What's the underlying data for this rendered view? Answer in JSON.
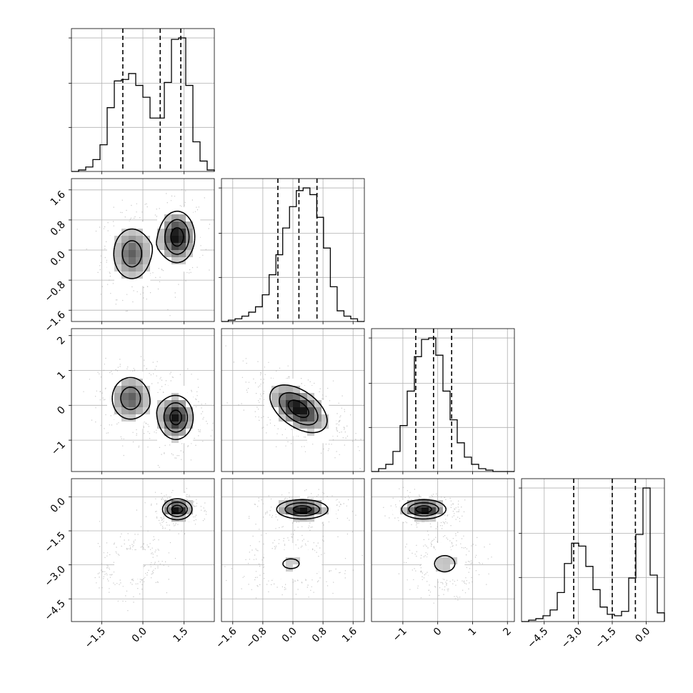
{
  "chart_data": {
    "type": "corner",
    "description_note": "",
    "parameters": [
      {
        "index": 0,
        "range": [
          -2.6,
          2.6
        ],
        "ticks": [
          -1.5,
          0.0,
          1.5
        ],
        "tick_labels": [
          "−1.5",
          "0.0",
          "1.5"
        ],
        "quantiles": [
          -0.73,
          0.63,
          1.38
        ],
        "modes": [
          {
            "mu": -0.4,
            "sd": 0.6,
            "w": 0.5
          },
          {
            "mu": 1.25,
            "sd": 0.5,
            "w": 0.5
          }
        ]
      },
      {
        "index": 1,
        "range": [
          -1.9,
          1.9
        ],
        "ticks": [
          -1.6,
          -0.8,
          0.0,
          0.8,
          1.6
        ],
        "tick_labels": [
          "−1.6",
          "−0.8",
          "0.0",
          "0.8",
          "1.6"
        ],
        "quantiles": [
          -0.4,
          0.16,
          0.64
        ],
        "modes": [
          {
            "mu": 0.2,
            "sd": 0.48,
            "w": 1.0
          }
        ]
      },
      {
        "index": 2,
        "range": [
          -1.9,
          2.2
        ],
        "ticks": [
          -1,
          0,
          1,
          2
        ],
        "tick_labels": [
          "−1",
          "0",
          "1",
          "2"
        ],
        "quantiles": [
          -0.63,
          -0.12,
          0.4
        ],
        "modes": [
          {
            "mu": -0.1,
            "sd": 0.45,
            "w": 1.0
          }
        ]
      },
      {
        "index": 3,
        "range": [
          -5.5,
          0.8
        ],
        "ticks": [
          -4.5,
          -3.0,
          -1.5,
          0.0
        ],
        "tick_labels": [
          "−4.5",
          "−3.0",
          "−1.5",
          "0.0"
        ],
        "quantiles": [
          -3.2,
          -1.5,
          -0.48
        ],
        "modes": [
          {
            "mu": -3.0,
            "sd": 0.6,
            "w": 0.45
          },
          {
            "mu": -0.55,
            "sd": 0.35,
            "w": 0.55
          }
        ]
      }
    ],
    "histograms": {
      "0": [
        0.0,
        0.01,
        0.03,
        0.08,
        0.18,
        0.43,
        0.61,
        0.62,
        0.66,
        0.58,
        0.5,
        0.36,
        0.36,
        0.6,
        0.89,
        0.9,
        0.58,
        0.2,
        0.07,
        0.01
      ],
      "1": [
        0.0,
        0.01,
        0.02,
        0.04,
        0.07,
        0.11,
        0.2,
        0.35,
        0.5,
        0.7,
        0.86,
        0.98,
        1.0,
        0.95,
        0.78,
        0.55,
        0.26,
        0.08,
        0.04,
        0.02,
        0.0
      ],
      "2": [
        0.0,
        0.02,
        0.05,
        0.14,
        0.32,
        0.56,
        0.8,
        0.92,
        0.93,
        0.81,
        0.56,
        0.36,
        0.2,
        0.1,
        0.05,
        0.02,
        0.01,
        0.0,
        0.0,
        0.0
      ],
      "3": [
        0.0,
        0.01,
        0.02,
        0.04,
        0.08,
        0.2,
        0.4,
        0.54,
        0.52,
        0.38,
        0.22,
        0.1,
        0.05,
        0.04,
        0.07,
        0.3,
        0.6,
        0.92,
        0.32,
        0.06
      ]
    },
    "pairs": [
      {
        "x": 0,
        "y": 1,
        "modes": [
          {
            "mx": -0.4,
            "my": -0.1,
            "sx": 0.5,
            "sy": 0.5,
            "w": 0.5
          },
          {
            "mx": 1.25,
            "my": 0.35,
            "sx": 0.42,
            "sy": 0.45,
            "w": 0.5
          }
        ]
      },
      {
        "x": 0,
        "y": 2,
        "modes": [
          {
            "mx": -0.45,
            "my": 0.2,
            "sx": 0.5,
            "sy": 0.45,
            "w": 0.5
          },
          {
            "mx": 1.2,
            "my": -0.35,
            "sx": 0.42,
            "sy": 0.42,
            "w": 0.5
          }
        ]
      },
      {
        "x": 1,
        "y": 2,
        "modes": [
          {
            "mx": 0.15,
            "my": -0.1,
            "sx": 0.5,
            "sy": 0.45,
            "w": 1.0,
            "rho": -0.5
          }
        ]
      },
      {
        "x": 0,
        "y": 3,
        "modes": [
          {
            "mx": -0.45,
            "my": -3.0,
            "sx": 0.5,
            "sy": 0.6,
            "w": 0.45,
            "rho": 0.3
          },
          {
            "mx": 1.25,
            "my": -0.55,
            "sx": 0.35,
            "sy": 0.3,
            "w": 0.55
          }
        ]
      },
      {
        "x": 1,
        "y": 3,
        "modes": [
          {
            "mx": -0.05,
            "my": -2.95,
            "sx": 0.55,
            "sy": 0.55,
            "w": 0.45
          },
          {
            "mx": 0.25,
            "my": -0.55,
            "sx": 0.45,
            "sy": 0.28,
            "w": 0.55
          }
        ]
      },
      {
        "x": 2,
        "y": 3,
        "modes": [
          {
            "mx": 0.2,
            "my": -2.95,
            "sx": 0.45,
            "sy": 0.55,
            "w": 0.45
          },
          {
            "mx": -0.4,
            "my": -0.55,
            "sx": 0.42,
            "sy": 0.28,
            "w": 0.55
          }
        ]
      }
    ],
    "contour_levels_sigma": [
      0.5,
      1.0,
      1.5
    ],
    "title": "",
    "xlabel": "",
    "ylabel": "",
    "grid": true,
    "legend": "none"
  }
}
